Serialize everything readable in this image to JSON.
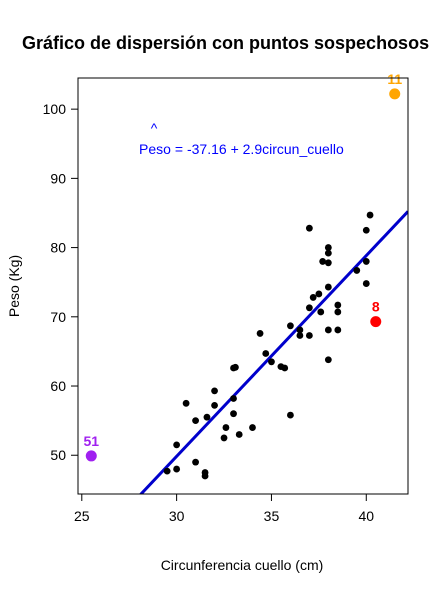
{
  "chart_data": {
    "type": "scatter",
    "title": "Gráfico de dispersión con puntos sospechosos",
    "xlabel": "Circunferencia cuello (cm)",
    "ylabel": "Peso (Kg)",
    "xlim": [
      24.8,
      42.2
    ],
    "ylim": [
      44.4,
      104.5
    ],
    "xticks": [
      25,
      30,
      35,
      40
    ],
    "yticks": [
      50,
      60,
      70,
      80,
      90,
      100
    ],
    "grid": false,
    "equation": {
      "lhs": "Peso",
      "hat": "^",
      "rhs": "= -37.16 + 2.9circun_cuello",
      "color": "#0000ff"
    },
    "regression": {
      "intercept": -37.16,
      "slope": 2.9,
      "color": "#0000cc"
    },
    "series": [
      {
        "color": "#000000",
        "points": [
          [
            29.5,
            47.7
          ],
          [
            30.0,
            48.0
          ],
          [
            30.0,
            51.5
          ],
          [
            31.0,
            49.0
          ],
          [
            31.5,
            47.0
          ],
          [
            31.5,
            47.5
          ],
          [
            30.5,
            57.5
          ],
          [
            31.0,
            55.0
          ],
          [
            31.6,
            55.5
          ],
          [
            32.0,
            57.2
          ],
          [
            32.0,
            59.3
          ],
          [
            32.5,
            52.5
          ],
          [
            32.6,
            54.0
          ],
          [
            33.0,
            56.0
          ],
          [
            33.0,
            58.2
          ],
          [
            33.0,
            62.6
          ],
          [
            33.1,
            62.7
          ],
          [
            33.3,
            53.0
          ],
          [
            34.0,
            54.0
          ],
          [
            34.4,
            67.6
          ],
          [
            34.7,
            64.7
          ],
          [
            35.0,
            63.5
          ],
          [
            35.5,
            62.8
          ],
          [
            35.7,
            62.6
          ],
          [
            36.0,
            55.8
          ],
          [
            36.0,
            68.7
          ],
          [
            36.5,
            67.3
          ],
          [
            36.5,
            68.1
          ],
          [
            37.0,
            67.3
          ],
          [
            37.0,
            71.3
          ],
          [
            37.0,
            82.8
          ],
          [
            37.2,
            72.8
          ],
          [
            37.5,
            73.3
          ],
          [
            37.6,
            70.7
          ],
          [
            37.7,
            78.0
          ],
          [
            38.0,
            63.8
          ],
          [
            38.0,
            68.1
          ],
          [
            38.0,
            74.3
          ],
          [
            38.0,
            77.8
          ],
          [
            38.0,
            79.2
          ],
          [
            38.0,
            80.0
          ],
          [
            38.5,
            68.1
          ],
          [
            38.5,
            70.7
          ],
          [
            38.5,
            71.7
          ],
          [
            39.5,
            76.7
          ],
          [
            40.0,
            74.8
          ],
          [
            40.0,
            78.0
          ],
          [
            40.0,
            82.5
          ],
          [
            40.2,
            84.7
          ]
        ]
      }
    ],
    "highlighted": [
      {
        "label": "51",
        "x": 25.5,
        "y": 49.9,
        "color": "#a020f0"
      },
      {
        "label": "8",
        "x": 40.5,
        "y": 69.3,
        "color": "#ff0000"
      },
      {
        "label": "11",
        "x": 41.5,
        "y": 102.2,
        "color": "#ffa500"
      }
    ]
  }
}
